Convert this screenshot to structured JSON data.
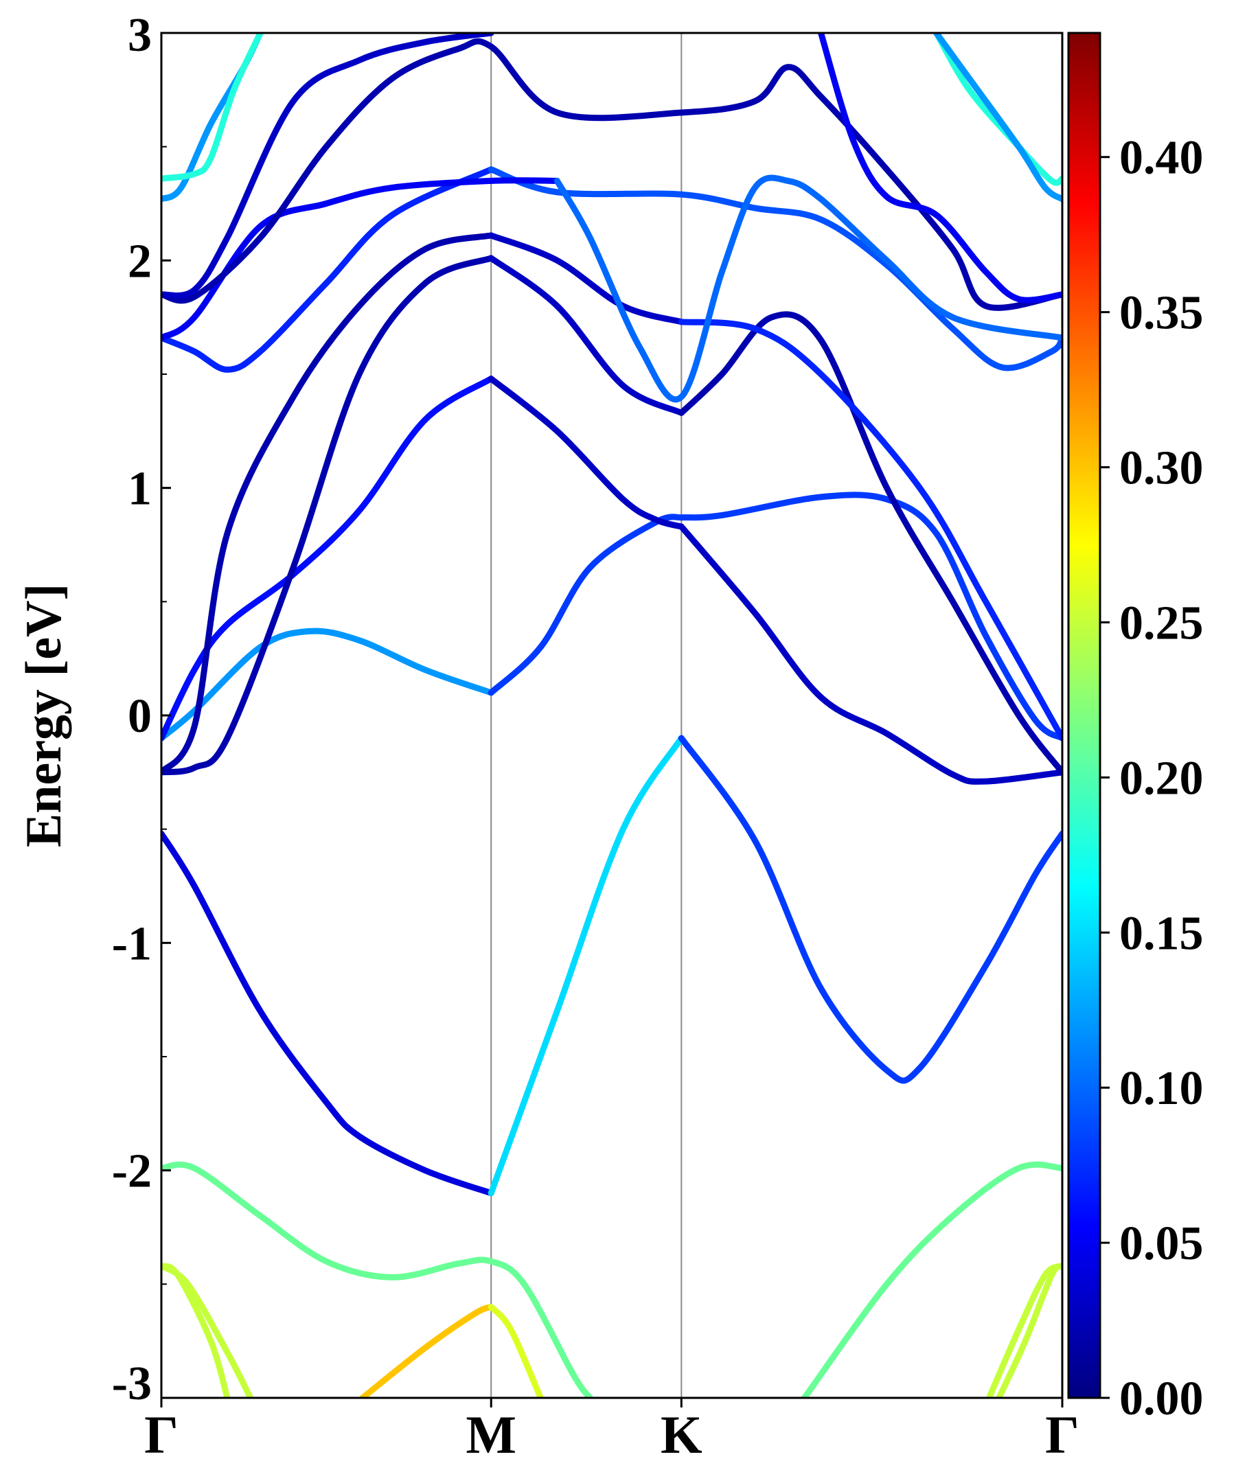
{
  "chart_data": {
    "type": "line",
    "ylabel": "Energy [eV]",
    "ylim": [
      -3,
      3
    ],
    "yticks": [
      -3,
      -2,
      -1,
      0,
      1,
      2,
      3
    ],
    "x_kpoints": [
      {
        "label": "Γ",
        "x": 0
      },
      {
        "label": "M",
        "x": 1
      },
      {
        "label": "K",
        "x": 1.577
      },
      {
        "label": "Γ",
        "x": 2.732
      }
    ],
    "xlim": [
      0,
      2.732
    ],
    "colorbar": {
      "min": 0.0,
      "max": 0.44,
      "ticks": [
        "0.00",
        "0.05",
        "0.10",
        "0.15",
        "0.20",
        "0.25",
        "0.30",
        "0.35",
        "0.40"
      ],
      "colormap": "jet"
    },
    "series": [
      {
        "values": [
          [
            0,
            -0.52
          ],
          [
            0.1,
            -0.75
          ],
          [
            0.3,
            -1.3
          ],
          [
            0.5,
            -1.7
          ],
          [
            0.6,
            -1.85
          ],
          [
            0.8,
            -2.0
          ],
          [
            1.0,
            -2.1
          ]
        ],
        "weight": 0.04
      },
      {
        "values": [
          [
            1.0,
            -2.1
          ],
          [
            1.2,
            -1.3
          ],
          [
            1.4,
            -0.5
          ],
          [
            1.577,
            -0.1
          ]
        ],
        "weight": 0.15
      },
      {
        "values": [
          [
            1.577,
            -0.1
          ],
          [
            1.8,
            -0.55
          ],
          [
            2.0,
            -1.2
          ],
          [
            2.2,
            -1.56
          ],
          [
            2.3,
            -1.55
          ],
          [
            2.5,
            -1.1
          ],
          [
            2.65,
            -0.7
          ],
          [
            2.732,
            -0.52
          ]
        ],
        "weight": 0.08
      },
      {
        "values": [
          [
            0,
            -1.99
          ],
          [
            0.1,
            -1.99
          ],
          [
            0.3,
            -2.2
          ],
          [
            0.5,
            -2.4
          ],
          [
            0.7,
            -2.47
          ],
          [
            0.9,
            -2.41
          ],
          [
            1.0,
            -2.4
          ],
          [
            1.1,
            -2.5
          ],
          [
            1.25,
            -2.9
          ],
          [
            1.3,
            -3.0
          ]
        ],
        "weight": 0.21
      },
      {
        "values": [
          [
            1.95,
            -3.0
          ],
          [
            2.2,
            -2.5
          ],
          [
            2.4,
            -2.2
          ],
          [
            2.6,
            -1.99
          ],
          [
            2.732,
            -1.99
          ]
        ],
        "weight": 0.21
      },
      {
        "values": [
          [
            0,
            -2.42
          ],
          [
            0.05,
            -2.46
          ],
          [
            0.15,
            -2.75
          ],
          [
            0.2,
            -3.0
          ]
        ],
        "weight": 0.25
      },
      {
        "values": [
          [
            0,
            -2.42
          ],
          [
            0.08,
            -2.5
          ],
          [
            0.2,
            -2.8
          ],
          [
            0.27,
            -3.0
          ]
        ],
        "weight": 0.25
      },
      {
        "values": [
          [
            0.61,
            -3.0
          ],
          [
            0.8,
            -2.78
          ],
          [
            0.95,
            -2.63
          ],
          [
            1.0,
            -2.6
          ]
        ],
        "weight": 0.3
      },
      {
        "values": [
          [
            1.0,
            -2.6
          ],
          [
            1.06,
            -2.7
          ],
          [
            1.15,
            -3.0
          ]
        ],
        "weight": 0.26
      },
      {
        "values": [
          [
            2.54,
            -3.0
          ],
          [
            2.62,
            -2.75
          ],
          [
            2.7,
            -2.46
          ],
          [
            2.732,
            -2.42
          ]
        ],
        "weight": 0.25
      },
      {
        "values": [
          [
            2.51,
            -3.0
          ],
          [
            2.6,
            -2.7
          ],
          [
            2.68,
            -2.46
          ],
          [
            2.732,
            -2.42
          ]
        ],
        "weight": 0.25
      },
      {
        "values": [
          [
            0,
            -0.1
          ],
          [
            0.1,
            0.02
          ],
          [
            0.3,
            0.3
          ],
          [
            0.45,
            0.37
          ],
          [
            0.6,
            0.33
          ],
          [
            0.8,
            0.2
          ],
          [
            1.0,
            0.1
          ]
        ],
        "weight": 0.12
      },
      {
        "values": [
          [
            1.0,
            0.1
          ],
          [
            1.15,
            0.3
          ],
          [
            1.3,
            0.65
          ],
          [
            1.5,
            0.85
          ],
          [
            1.577,
            0.87
          ]
        ],
        "weight": 0.08
      },
      {
        "values": [
          [
            1.577,
            0.87
          ],
          [
            1.7,
            0.88
          ],
          [
            2.0,
            0.96
          ],
          [
            2.2,
            0.95
          ],
          [
            2.35,
            0.8
          ],
          [
            2.5,
            0.35
          ],
          [
            2.65,
            -0.02
          ],
          [
            2.732,
            -0.1
          ]
        ],
        "weight": 0.08
      },
      {
        "values": [
          [
            0,
            -0.1
          ],
          [
            0.1,
            0.2
          ],
          [
            0.2,
            0.4
          ],
          [
            0.4,
            0.62
          ],
          [
            0.6,
            0.9
          ],
          [
            0.8,
            1.3
          ],
          [
            1.0,
            1.48
          ]
        ],
        "weight": 0.06
      },
      {
        "values": [
          [
            1.0,
            1.48
          ],
          [
            1.2,
            1.25
          ],
          [
            1.4,
            0.95
          ],
          [
            1.5,
            0.86
          ],
          [
            1.577,
            0.83
          ]
        ],
        "weight": 0.03
      },
      {
        "values": [
          [
            1.577,
            0.83
          ],
          [
            1.8,
            0.45
          ],
          [
            2.0,
            0.08
          ],
          [
            2.2,
            -0.08
          ],
          [
            2.4,
            -0.26
          ],
          [
            2.5,
            -0.29
          ],
          [
            2.732,
            -0.25
          ]
        ],
        "weight": 0.03
      },
      {
        "values": [
          [
            0,
            -0.25
          ],
          [
            0.1,
            -0.23
          ],
          [
            0.2,
            -0.1
          ],
          [
            0.4,
            0.65
          ],
          [
            0.6,
            1.5
          ],
          [
            0.8,
            1.9
          ],
          [
            1.0,
            2.01
          ]
        ],
        "weight": 0.02
      },
      {
        "values": [
          [
            1.0,
            2.01
          ],
          [
            1.2,
            1.8
          ],
          [
            1.4,
            1.45
          ],
          [
            1.577,
            1.33
          ]
        ],
        "weight": 0.03
      },
      {
        "values": [
          [
            1.577,
            1.33
          ],
          [
            1.7,
            1.5
          ],
          [
            1.85,
            1.75
          ],
          [
            2.0,
            1.65
          ],
          [
            2.2,
            1.0
          ],
          [
            2.4,
            0.5
          ],
          [
            2.6,
            0.0
          ],
          [
            2.732,
            -0.25
          ]
        ],
        "weight": 0.02
      },
      {
        "values": [
          [
            0,
            -0.25
          ],
          [
            0.1,
            -0.05
          ],
          [
            0.2,
            0.8
          ],
          [
            0.4,
            1.4
          ],
          [
            0.6,
            1.8
          ],
          [
            0.8,
            2.05
          ],
          [
            1.0,
            2.11
          ]
        ],
        "weight": 0.02
      },
      {
        "values": [
          [
            1.0,
            2.11
          ],
          [
            1.2,
            2.0
          ],
          [
            1.4,
            1.8
          ],
          [
            1.577,
            1.73
          ]
        ],
        "weight": 0.03
      },
      {
        "values": [
          [
            1.577,
            1.73
          ],
          [
            1.8,
            1.7
          ],
          [
            2.0,
            1.5
          ],
          [
            2.3,
            1.0
          ],
          [
            2.5,
            0.5
          ],
          [
            2.732,
            -0.1
          ]
        ],
        "weight": 0.07
      },
      {
        "values": [
          [
            0,
            1.66
          ],
          [
            0.1,
            1.6
          ],
          [
            0.2,
            1.52
          ],
          [
            0.3,
            1.6
          ],
          [
            0.5,
            1.9
          ],
          [
            0.7,
            2.2
          ],
          [
            1.0,
            2.4
          ]
        ],
        "weight": 0.07
      },
      {
        "values": [
          [
            1.0,
            2.4
          ],
          [
            1.2,
            2.3
          ],
          [
            1.577,
            2.29
          ],
          [
            1.8,
            2.23
          ],
          [
            2.0,
            2.18
          ],
          [
            2.2,
            1.98
          ],
          [
            2.4,
            1.7
          ],
          [
            2.55,
            1.53
          ],
          [
            2.7,
            1.6
          ],
          [
            2.732,
            1.66
          ]
        ],
        "weight": 0.09
      },
      {
        "values": [
          [
            0,
            1.66
          ],
          [
            0.1,
            1.75
          ],
          [
            0.3,
            2.15
          ],
          [
            0.5,
            2.25
          ],
          [
            0.7,
            2.32
          ],
          [
            1.0,
            2.35
          ],
          [
            1.2,
            2.35
          ]
        ],
        "weight": 0.05
      },
      {
        "values": [
          [
            1.2,
            2.35
          ],
          [
            1.3,
            2.1
          ],
          [
            1.45,
            1.62
          ],
          [
            1.577,
            1.4
          ],
          [
            1.7,
            1.95
          ],
          [
            1.8,
            2.32
          ],
          [
            1.9,
            2.35
          ],
          [
            2.0,
            2.27
          ],
          [
            2.2,
            2.0
          ],
          [
            2.4,
            1.75
          ],
          [
            2.732,
            1.66
          ]
        ],
        "weight": 0.1
      },
      {
        "values": [
          [
            0,
            1.85
          ],
          [
            0.1,
            1.84
          ],
          [
            0.3,
            2.1
          ],
          [
            0.5,
            2.5
          ],
          [
            0.7,
            2.8
          ],
          [
            0.9,
            2.93
          ],
          [
            1.0,
            2.94
          ],
          [
            1.2,
            2.65
          ],
          [
            1.577,
            2.65
          ],
          [
            1.8,
            2.7
          ],
          [
            1.9,
            2.85
          ],
          [
            2.0,
            2.72
          ],
          [
            2.2,
            2.4
          ],
          [
            2.4,
            2.05
          ],
          [
            2.5,
            1.8
          ],
          [
            2.732,
            1.85
          ]
        ],
        "weight": 0.02
      },
      {
        "values": [
          [
            0,
            1.85
          ],
          [
            0.1,
            1.87
          ],
          [
            0.2,
            2.1
          ],
          [
            0.4,
            2.7
          ],
          [
            0.6,
            2.88
          ],
          [
            0.8,
            2.96
          ],
          [
            1.0,
            3.0
          ]
        ],
        "weight": 0.03
      },
      {
        "values": [
          [
            2.0,
            3.0
          ],
          [
            2.1,
            2.52
          ],
          [
            2.2,
            2.28
          ],
          [
            2.35,
            2.2
          ],
          [
            2.5,
            1.95
          ],
          [
            2.6,
            1.83
          ],
          [
            2.732,
            1.85
          ]
        ],
        "weight": 0.05
      },
      {
        "values": [
          [
            0,
            2.27
          ],
          [
            0.06,
            2.32
          ],
          [
            0.15,
            2.6
          ],
          [
            0.25,
            2.85
          ],
          [
            0.3,
            3.0
          ]
        ],
        "weight": 0.12
      },
      {
        "values": [
          [
            0,
            2.36
          ],
          [
            0.1,
            2.38
          ],
          [
            0.15,
            2.45
          ],
          [
            0.22,
            2.75
          ],
          [
            0.3,
            3.0
          ]
        ],
        "weight": 0.18
      },
      {
        "values": [
          [
            2.35,
            3.0
          ],
          [
            2.45,
            2.75
          ],
          [
            2.6,
            2.5
          ],
          [
            2.7,
            2.35
          ],
          [
            2.732,
            2.36
          ]
        ],
        "weight": 0.18
      },
      {
        "values": [
          [
            2.35,
            3.0
          ],
          [
            2.45,
            2.8
          ],
          [
            2.6,
            2.5
          ],
          [
            2.68,
            2.32
          ],
          [
            2.732,
            2.27
          ]
        ],
        "weight": 0.12
      }
    ]
  }
}
